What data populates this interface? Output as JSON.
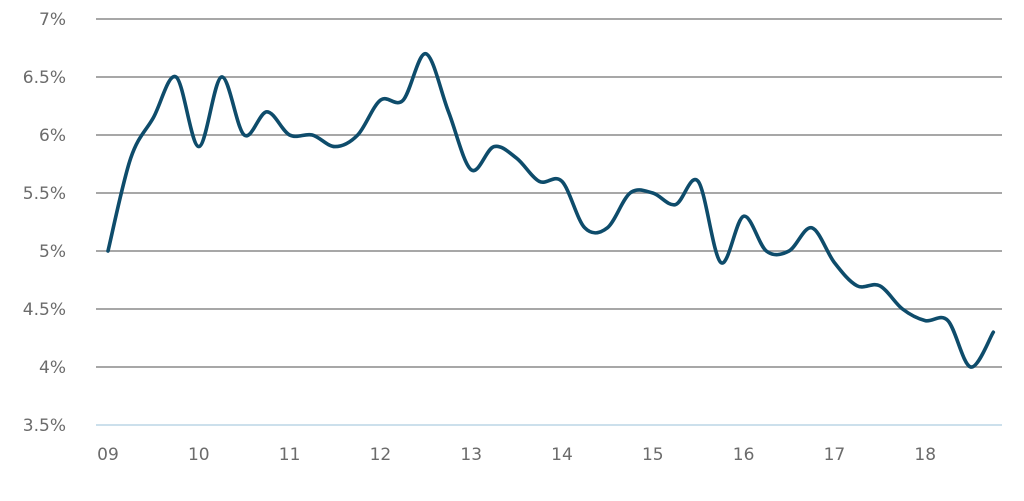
{
  "chart_data": {
    "type": "line",
    "title": "",
    "xlabel": "",
    "ylabel": "",
    "ylim": [
      3.5,
      7
    ],
    "xlim": [
      2009,
      2018.95
    ],
    "grid": true,
    "legend": "none",
    "y_ticks": [
      {
        "value": 3.5,
        "label": "3.5%"
      },
      {
        "value": 4,
        "label": "4%"
      },
      {
        "value": 4.5,
        "label": "4.5%"
      },
      {
        "value": 5,
        "label": "5%"
      },
      {
        "value": 5.5,
        "label": "5.5%"
      },
      {
        "value": 6,
        "label": "6%"
      },
      {
        "value": 6.5,
        "label": "6.5%"
      },
      {
        "value": 7,
        "label": "7%"
      }
    ],
    "x_ticks": [
      {
        "value": 2009,
        "label": "09"
      },
      {
        "value": 2010,
        "label": "10"
      },
      {
        "value": 2011,
        "label": "11"
      },
      {
        "value": 2012,
        "label": "12"
      },
      {
        "value": 2013,
        "label": "13"
      },
      {
        "value": 2014,
        "label": "14"
      },
      {
        "value": 2015,
        "label": "15"
      },
      {
        "value": 2016,
        "label": "16"
      },
      {
        "value": 2017,
        "label": "17"
      },
      {
        "value": 2018,
        "label": "18"
      }
    ],
    "series": [
      {
        "color": "#0e4c6b",
        "points": [
          [
            2009.0,
            5.0
          ],
          [
            2009.25,
            5.8
          ],
          [
            2009.5,
            6.15
          ],
          [
            2009.75,
            6.5
          ],
          [
            2010.0,
            5.9
          ],
          [
            2010.25,
            6.5
          ],
          [
            2010.5,
            6.0
          ],
          [
            2010.75,
            6.2
          ],
          [
            2011.0,
            6.0
          ],
          [
            2011.25,
            6.0
          ],
          [
            2011.5,
            5.9
          ],
          [
            2011.75,
            6.0
          ],
          [
            2012.0,
            6.3
          ],
          [
            2012.25,
            6.3
          ],
          [
            2012.5,
            6.7
          ],
          [
            2012.75,
            6.2
          ],
          [
            2013.0,
            5.7
          ],
          [
            2013.25,
            5.9
          ],
          [
            2013.5,
            5.8
          ],
          [
            2013.75,
            5.6
          ],
          [
            2014.0,
            5.6
          ],
          [
            2014.25,
            5.2
          ],
          [
            2014.5,
            5.2
          ],
          [
            2014.75,
            5.5
          ],
          [
            2015.0,
            5.5
          ],
          [
            2015.25,
            5.4
          ],
          [
            2015.5,
            5.6
          ],
          [
            2015.75,
            4.9
          ],
          [
            2016.0,
            5.3
          ],
          [
            2016.25,
            5.0
          ],
          [
            2016.5,
            5.0
          ],
          [
            2016.75,
            5.2
          ],
          [
            2017.0,
            4.9
          ],
          [
            2017.25,
            4.7
          ],
          [
            2017.5,
            4.7
          ],
          [
            2017.75,
            4.5
          ],
          [
            2018.0,
            4.4
          ],
          [
            2018.25,
            4.4
          ],
          [
            2018.5,
            4.0
          ],
          [
            2018.75,
            4.3
          ]
        ]
      }
    ]
  }
}
